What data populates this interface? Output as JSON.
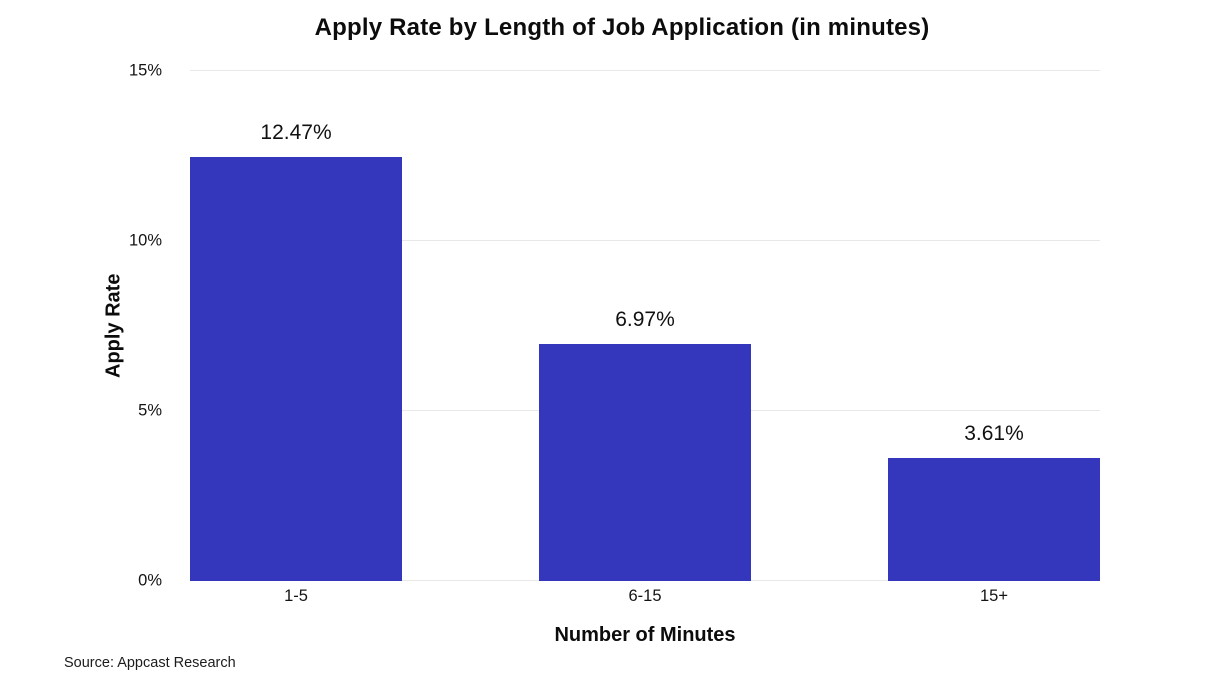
{
  "chart": {
    "title": "Apply Rate by Length of Job Application (in minutes)",
    "y_axis_title": "Apply Rate",
    "x_axis_title": "Number of Minutes",
    "source": "Source: Appcast Research",
    "bar_color": "#3437BC",
    "gridline_color": "#e8e8e8"
  },
  "chart_data": {
    "type": "bar",
    "title": "Apply Rate by Length of Job Application (in minutes)",
    "categories": [
      "1-5",
      "6-15",
      "15+"
    ],
    "values": [
      12.47,
      6.97,
      3.61
    ],
    "data_labels": [
      "12.47%",
      "6.97%",
      "3.61%"
    ],
    "xlabel": "Number of Minutes",
    "ylabel": "Apply Rate",
    "ylim": [
      0,
      15
    ],
    "yticks": [
      0,
      5,
      10,
      15
    ],
    "ytick_labels": [
      "0%",
      "5%",
      "10%",
      "15%"
    ],
    "grid": true,
    "legend": false,
    "bar_color": "#3437BC"
  }
}
